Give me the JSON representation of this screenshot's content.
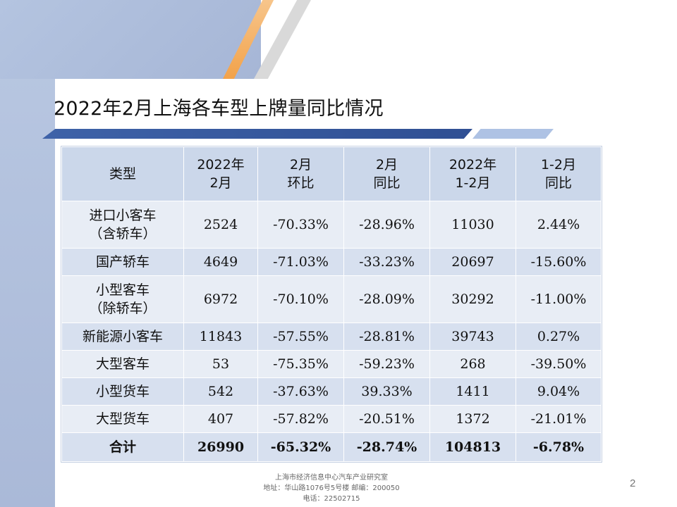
{
  "title": "2022年2月上海各车型上牌量同比情况",
  "table": {
    "headers": [
      [
        "类型"
      ],
      [
        "2022年",
        "2月"
      ],
      [
        "2月",
        "环比"
      ],
      [
        "2月",
        "同比"
      ],
      [
        "2022年",
        "1-2月"
      ],
      [
        "1-2月",
        "同比"
      ]
    ],
    "rows": [
      {
        "type": [
          "进口小客车",
          "（含轿车）"
        ],
        "cells": [
          "2524",
          "-70.33%",
          "-28.96%",
          "11030",
          "2.44%"
        ]
      },
      {
        "type": [
          "国产轿车"
        ],
        "cells": [
          "4649",
          "-71.03%",
          "-33.23%",
          "20697",
          "-15.60%"
        ]
      },
      {
        "type": [
          "小型客车",
          "（除轿车）"
        ],
        "cells": [
          "6972",
          "-70.10%",
          "-28.09%",
          "30292",
          "-11.00%"
        ]
      },
      {
        "type": [
          "新能源小客车"
        ],
        "cells": [
          "11843",
          "-57.55%",
          "-28.81%",
          "39743",
          "0.27%"
        ]
      },
      {
        "type": [
          "大型客车"
        ],
        "cells": [
          "53",
          "-75.35%",
          "-59.23%",
          "268",
          "-39.50%"
        ]
      },
      {
        "type": [
          "小型货车"
        ],
        "cells": [
          "542",
          "-37.63%",
          "39.33%",
          "1411",
          "9.04%"
        ]
      },
      {
        "type": [
          "大型货车"
        ],
        "cells": [
          "407",
          "-57.82%",
          "-20.51%",
          "1372",
          "-21.01%"
        ]
      }
    ],
    "total": {
      "type": "合计",
      "cells": [
        "26990",
        "-65.32%",
        "-28.74%",
        "104813",
        "-6.78%"
      ]
    }
  },
  "footer": {
    "line1": "上海市经济信息中心汽车产业研究室",
    "line2": "地址：华山路1076号5号楼   邮编：200050",
    "line3": "电话：22502715"
  },
  "page_number": "2",
  "colors": {
    "header_bg": "#cbd7ea",
    "row_light": "#e8edf5",
    "row_dark": "#d7e0ef",
    "accent_blue": "#2f4f93",
    "accent_orange": "#f2a24a"
  }
}
